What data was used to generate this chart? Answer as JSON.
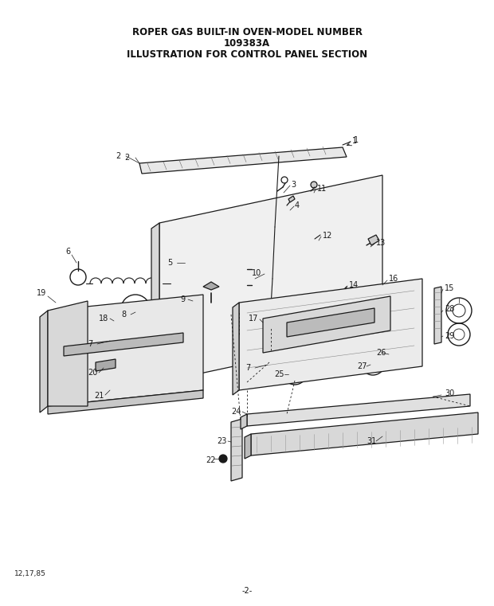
{
  "title_line1": "ROPER GAS BUILT-IN OVEN-MODEL NUMBER",
  "title_line2": "109383A",
  "title_line3": "ILLUSTRATION FOR CONTROL PANEL SECTION",
  "footer_left": "12,17,85",
  "footer_center": "-2-",
  "bg_color": "#ffffff",
  "text_color": "#111111",
  "title_fontsize": 8.5,
  "fig_w": 6.2,
  "fig_h": 7.61,
  "dpi": 100
}
